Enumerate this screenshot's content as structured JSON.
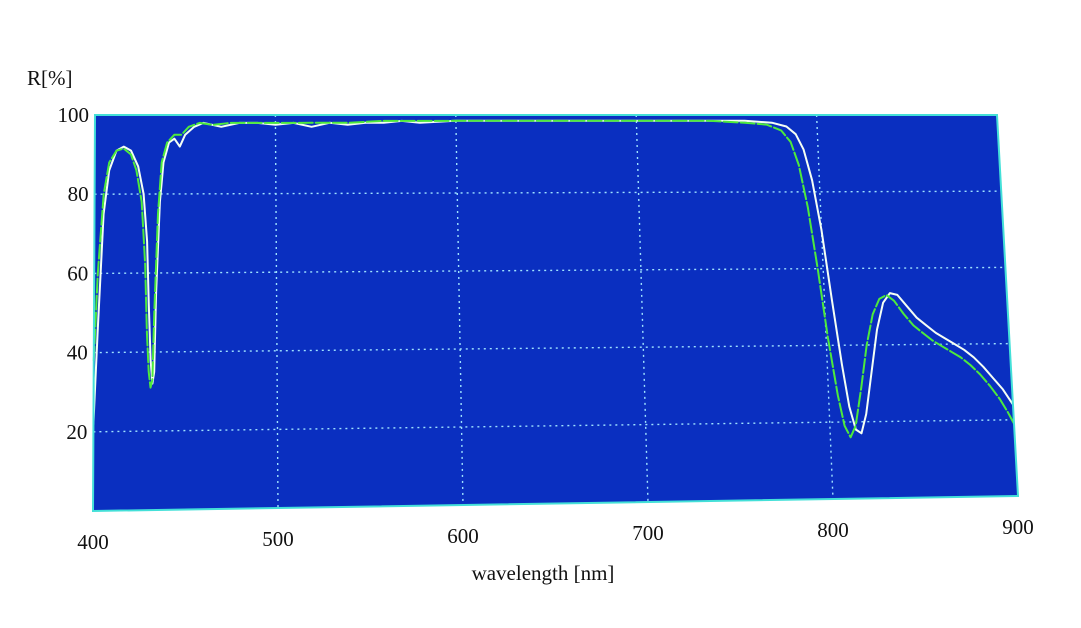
{
  "chart_data": {
    "type": "line",
    "xlabel": "wavelength [nm]",
    "ylabel": "R[%]",
    "xlim": [
      400,
      900
    ],
    "ylim": [
      0,
      100
    ],
    "x_ticks": [
      "400",
      "500",
      "600",
      "700",
      "800",
      "900"
    ],
    "y_ticks": [
      "100",
      "80",
      "60",
      "40",
      "20"
    ],
    "grid": true,
    "colors": {
      "background": "#0a2fc0",
      "grid": "#9fe3ff",
      "frame": "#44e0d8"
    },
    "series": [
      {
        "color": "#f4fff4",
        "style": "solid",
        "points": [
          [
            400,
            22
          ],
          [
            402,
            45
          ],
          [
            405,
            75
          ],
          [
            408,
            86
          ],
          [
            412,
            91
          ],
          [
            416,
            92
          ],
          [
            420,
            91
          ],
          [
            424,
            87
          ],
          [
            427,
            80
          ],
          [
            429,
            68
          ],
          [
            430,
            52
          ],
          [
            431,
            38
          ],
          [
            432,
            32
          ],
          [
            433,
            35
          ],
          [
            434,
            55
          ],
          [
            436,
            78
          ],
          [
            438,
            88
          ],
          [
            441,
            93
          ],
          [
            444,
            94
          ],
          [
            447,
            92
          ],
          [
            450,
            95
          ],
          [
            455,
            97
          ],
          [
            460,
            98
          ],
          [
            470,
            97
          ],
          [
            480,
            98
          ],
          [
            490,
            98
          ],
          [
            500,
            97.5
          ],
          [
            510,
            98
          ],
          [
            520,
            97
          ],
          [
            530,
            98
          ],
          [
            540,
            97.5
          ],
          [
            550,
            98
          ],
          [
            560,
            98
          ],
          [
            570,
            98.5
          ],
          [
            580,
            98
          ],
          [
            600,
            98.5
          ],
          [
            620,
            98.5
          ],
          [
            640,
            98.5
          ],
          [
            660,
            98.5
          ],
          [
            680,
            98.5
          ],
          [
            700,
            98.5
          ],
          [
            720,
            98.5
          ],
          [
            740,
            98.5
          ],
          [
            760,
            98.5
          ],
          [
            775,
            98
          ],
          [
            783,
            97
          ],
          [
            788,
            95
          ],
          [
            792,
            91
          ],
          [
            796,
            83
          ],
          [
            800,
            70
          ],
          [
            804,
            52
          ],
          [
            808,
            35
          ],
          [
            811,
            24
          ],
          [
            814,
            18
          ],
          [
            817,
            17
          ],
          [
            820,
            22
          ],
          [
            824,
            33
          ],
          [
            828,
            44
          ],
          [
            832,
            51
          ],
          [
            836,
            53.5
          ],
          [
            840,
            53
          ],
          [
            845,
            50
          ],
          [
            850,
            47
          ],
          [
            855,
            45
          ],
          [
            860,
            43
          ],
          [
            865,
            41.5
          ],
          [
            870,
            40
          ],
          [
            875,
            38.5
          ],
          [
            880,
            36.5
          ],
          [
            885,
            34
          ],
          [
            890,
            31
          ],
          [
            895,
            28
          ],
          [
            900,
            24
          ]
        ]
      },
      {
        "color": "#4dea3c",
        "style": "dashed",
        "points": [
          [
            400,
            38
          ],
          [
            402,
            60
          ],
          [
            405,
            80
          ],
          [
            408,
            88
          ],
          [
            412,
            91
          ],
          [
            416,
            91.5
          ],
          [
            420,
            90
          ],
          [
            423,
            86
          ],
          [
            426,
            78
          ],
          [
            428,
            62
          ],
          [
            429,
            45
          ],
          [
            430,
            35
          ],
          [
            431,
            31
          ],
          [
            432,
            33
          ],
          [
            433,
            50
          ],
          [
            435,
            75
          ],
          [
            437,
            88
          ],
          [
            440,
            93
          ],
          [
            444,
            95
          ],
          [
            448,
            95
          ],
          [
            452,
            97
          ],
          [
            458,
            98
          ],
          [
            465,
            97.5
          ],
          [
            475,
            98
          ],
          [
            490,
            98
          ],
          [
            500,
            98
          ],
          [
            520,
            98
          ],
          [
            540,
            98
          ],
          [
            560,
            98.5
          ],
          [
            580,
            98.5
          ],
          [
            600,
            98.5
          ],
          [
            620,
            98.5
          ],
          [
            640,
            98.5
          ],
          [
            660,
            98.5
          ],
          [
            680,
            98.5
          ],
          [
            700,
            98.5
          ],
          [
            720,
            98.5
          ],
          [
            740,
            98.5
          ],
          [
            760,
            98
          ],
          [
            772,
            97.5
          ],
          [
            780,
            96
          ],
          [
            785,
            93
          ],
          [
            789,
            87
          ],
          [
            793,
            76
          ],
          [
            797,
            60
          ],
          [
            801,
            42
          ],
          [
            805,
            27
          ],
          [
            808,
            19
          ],
          [
            811,
            16
          ],
          [
            814,
            19
          ],
          [
            818,
            29
          ],
          [
            822,
            40
          ],
          [
            826,
            48
          ],
          [
            830,
            52
          ],
          [
            834,
            53
          ],
          [
            838,
            51.5
          ],
          [
            843,
            48
          ],
          [
            848,
            45
          ],
          [
            853,
            43
          ],
          [
            858,
            41
          ],
          [
            863,
            39.5
          ],
          [
            868,
            38
          ],
          [
            873,
            36.5
          ],
          [
            878,
            34.5
          ],
          [
            883,
            32
          ],
          [
            888,
            29
          ],
          [
            893,
            25.5
          ],
          [
            897,
            22
          ],
          [
            900,
            19
          ]
        ]
      }
    ]
  }
}
